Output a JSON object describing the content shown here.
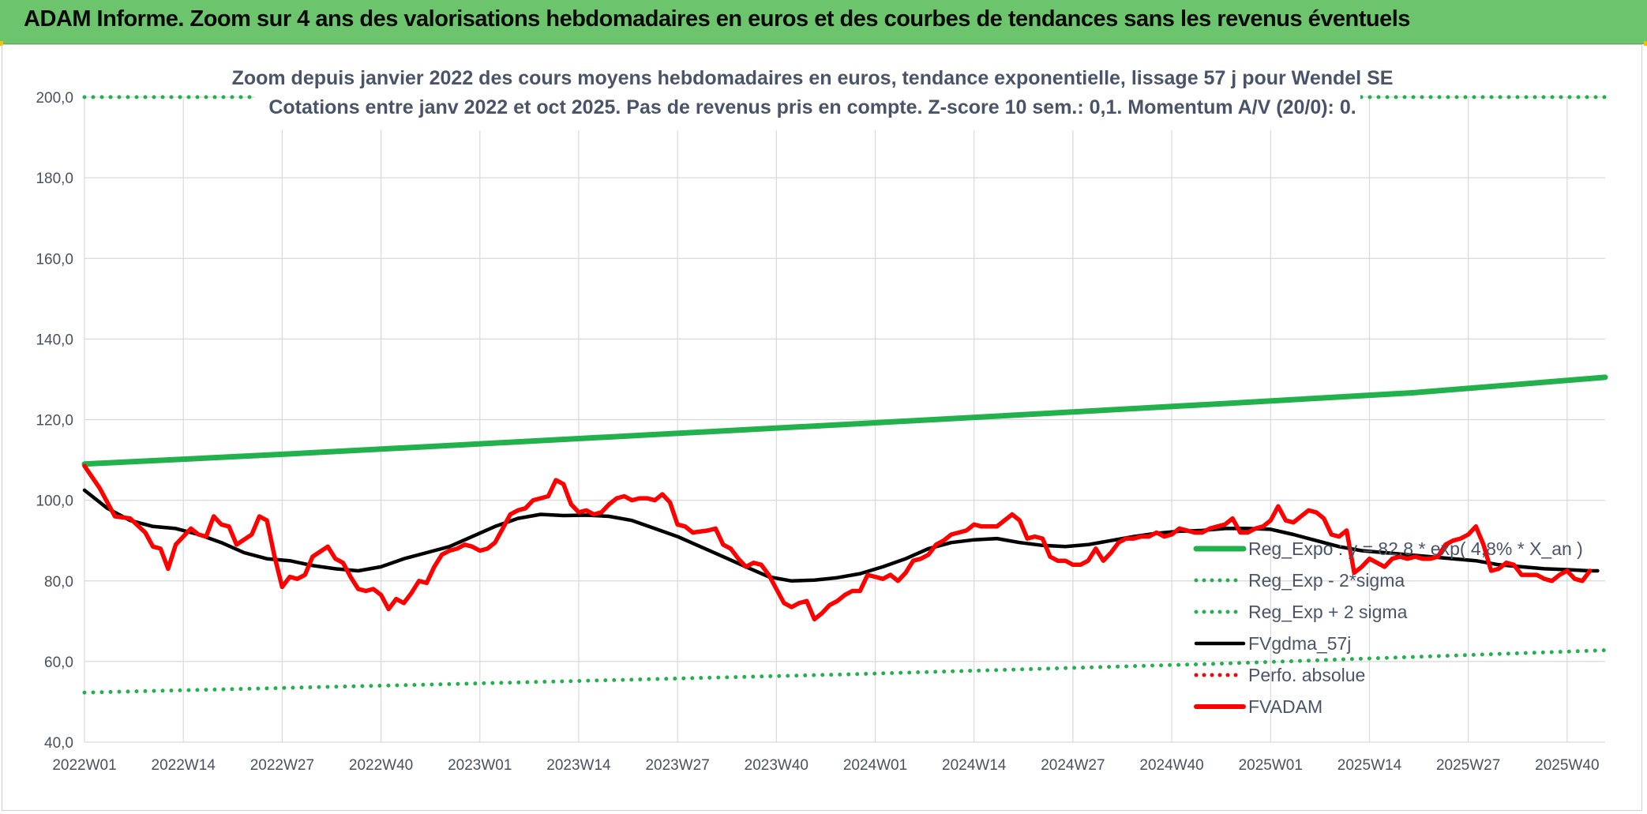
{
  "banner": {
    "title": "ADAM Informe. Zoom sur 4 ans des valorisations hebdomadaires en euros et des courbes de tendances sans les revenus éventuels"
  },
  "chart_data": {
    "type": "line",
    "title": "Zoom depuis janvier 2022 des cours moyens hebdomadaires en euros, tendance exponentielle, lissage 57 j pour Wendel SE",
    "subtitle": "Cotations entre janv 2022 et oct 2025. Pas de revenus pris en compte. Z-score 10 sem.: 0,1. Momentum A/V (20/0): 0.",
    "xlabel": "",
    "ylabel": "",
    "ylim": [
      40,
      200
    ],
    "y_ticks": [
      "40,0",
      "60,0",
      "80,0",
      "100,0",
      "120,0",
      "140,0",
      "160,0",
      "180,0",
      "200,0"
    ],
    "x_ticks": [
      "2022W01",
      "2022W14",
      "2022W27",
      "2022W40",
      "2023W01",
      "2023W14",
      "2023W27",
      "2023W40",
      "2024W01",
      "2024W14",
      "2024W27",
      "2024W40",
      "2025W01",
      "2025W14",
      "2025W27",
      "2025W40"
    ],
    "grid": true,
    "legend_position": "right",
    "series": [
      {
        "name": "Reg_Expo : y = 82,8 * exp( 4,8% * X_an )",
        "color": "#22b14c",
        "style": "solid",
        "points": [
          [
            0,
            109.0
          ],
          [
            25,
            111.3
          ],
          [
            50,
            113.8
          ],
          [
            75,
            116.3
          ],
          [
            100,
            118.8
          ],
          [
            125,
            121.4
          ],
          [
            150,
            124.0
          ],
          [
            175,
            126.7
          ],
          [
            200,
            130.5
          ]
        ]
      },
      {
        "name": "Reg_Exp - 2*sigma",
        "color": "#22b14c",
        "style": "dotted",
        "points": [
          [
            0,
            52.3
          ],
          [
            50,
            54.5
          ],
          [
            100,
            56.8
          ],
          [
            150,
            59.5
          ],
          [
            200,
            62.8
          ]
        ]
      },
      {
        "name": "Reg_Exp + 2 sigma",
        "color": "#22b14c",
        "style": "dotted",
        "points": [
          [
            0,
            200.0
          ],
          [
            200,
            200.0
          ]
        ]
      },
      {
        "name": "FVgdma_57j",
        "color": "#000000",
        "style": "solid",
        "points": [
          [
            0,
            102.5
          ],
          [
            3,
            98.0
          ],
          [
            6,
            95.0
          ],
          [
            9,
            93.5
          ],
          [
            12,
            93.0
          ],
          [
            15,
            91.5
          ],
          [
            18,
            89.5
          ],
          [
            21,
            87.0
          ],
          [
            24,
            85.5
          ],
          [
            27,
            85.0
          ],
          [
            30,
            83.8
          ],
          [
            33,
            83.0
          ],
          [
            36,
            82.5
          ],
          [
            39,
            83.5
          ],
          [
            42,
            85.5
          ],
          [
            45,
            87.0
          ],
          [
            48,
            88.5
          ],
          [
            51,
            91.0
          ],
          [
            54,
            93.5
          ],
          [
            57,
            95.5
          ],
          [
            60,
            96.5
          ],
          [
            63,
            96.2
          ],
          [
            66,
            96.3
          ],
          [
            69,
            96.0
          ],
          [
            72,
            95.0
          ],
          [
            75,
            93.0
          ],
          [
            78,
            91.0
          ],
          [
            81,
            88.5
          ],
          [
            84,
            86.0
          ],
          [
            87,
            83.5
          ],
          [
            90,
            81.0
          ],
          [
            93,
            80.0
          ],
          [
            96,
            80.2
          ],
          [
            99,
            80.8
          ],
          [
            102,
            81.8
          ],
          [
            105,
            83.5
          ],
          [
            108,
            85.5
          ],
          [
            111,
            88.0
          ],
          [
            114,
            89.5
          ],
          [
            117,
            90.2
          ],
          [
            120,
            90.5
          ],
          [
            123,
            89.5
          ],
          [
            126,
            88.8
          ],
          [
            129,
            88.5
          ],
          [
            132,
            89.0
          ],
          [
            135,
            90.0
          ],
          [
            138,
            91.0
          ],
          [
            141,
            91.8
          ],
          [
            144,
            92.3
          ],
          [
            147,
            92.5
          ],
          [
            150,
            93.0
          ],
          [
            153,
            93.0
          ],
          [
            156,
            92.8
          ],
          [
            159,
            91.5
          ],
          [
            162,
            90.0
          ],
          [
            165,
            88.5
          ],
          [
            168,
            87.5
          ],
          [
            171,
            87.0
          ],
          [
            174,
            86.5
          ],
          [
            177,
            86.0
          ],
          [
            180,
            85.5
          ],
          [
            183,
            85.0
          ],
          [
            186,
            84.0
          ],
          [
            189,
            83.5
          ],
          [
            192,
            83.0
          ],
          [
            195,
            82.8
          ],
          [
            198,
            82.5
          ],
          [
            199,
            82.5
          ]
        ]
      },
      {
        "name": "Perfo. absolue",
        "color": "#ff0000",
        "style": "dotted",
        "points": []
      },
      {
        "name": "FVADAM",
        "color": "#ff0000",
        "style": "solid",
        "points": [
          [
            0,
            108.5
          ],
          [
            2,
            103.0
          ],
          [
            4,
            96.0
          ],
          [
            6,
            95.5
          ],
          [
            8,
            92.0
          ],
          [
            9,
            88.5
          ],
          [
            10,
            88.0
          ],
          [
            11,
            83.0
          ],
          [
            12,
            89.0
          ],
          [
            14,
            93.0
          ],
          [
            15,
            91.5
          ],
          [
            16,
            91.0
          ],
          [
            17,
            96.0
          ],
          [
            18,
            94.0
          ],
          [
            19,
            93.5
          ],
          [
            20,
            89.0
          ],
          [
            22,
            91.5
          ],
          [
            23,
            96.0
          ],
          [
            24,
            95.0
          ],
          [
            25,
            86.0
          ],
          [
            26,
            78.5
          ],
          [
            27,
            81.0
          ],
          [
            28,
            80.5
          ],
          [
            29,
            81.5
          ],
          [
            30,
            86.0
          ],
          [
            32,
            88.5
          ],
          [
            33,
            85.5
          ],
          [
            34,
            84.5
          ],
          [
            35,
            81.0
          ],
          [
            36,
            78.0
          ],
          [
            37,
            77.5
          ],
          [
            38,
            78.0
          ],
          [
            39,
            76.5
          ],
          [
            40,
            73.0
          ],
          [
            41,
            75.5
          ],
          [
            42,
            74.5
          ],
          [
            43,
            77.0
          ],
          [
            44,
            80.0
          ],
          [
            45,
            79.5
          ],
          [
            46,
            83.5
          ],
          [
            47,
            86.5
          ],
          [
            48,
            87.5
          ],
          [
            49,
            88.0
          ],
          [
            50,
            89.0
          ],
          [
            51,
            88.5
          ],
          [
            52,
            87.5
          ],
          [
            53,
            88.0
          ],
          [
            54,
            89.5
          ],
          [
            55,
            93.0
          ],
          [
            56,
            96.5
          ],
          [
            57,
            97.5
          ],
          [
            58,
            98.0
          ],
          [
            59,
            100.0
          ],
          [
            60,
            100.5
          ],
          [
            61,
            101.0
          ],
          [
            62,
            105.0
          ],
          [
            63,
            104.0
          ],
          [
            64,
            99.0
          ],
          [
            65,
            97.0
          ],
          [
            66,
            97.5
          ],
          [
            67,
            96.5
          ],
          [
            68,
            97.0
          ],
          [
            69,
            99.0
          ],
          [
            70,
            100.5
          ],
          [
            71,
            101.0
          ],
          [
            72,
            100.0
          ],
          [
            73,
            100.5
          ],
          [
            74,
            100.5
          ],
          [
            75,
            100.0
          ],
          [
            76,
            101.5
          ],
          [
            77,
            99.5
          ],
          [
            78,
            94.0
          ],
          [
            79,
            93.5
          ],
          [
            80,
            92.0
          ],
          [
            82,
            92.5
          ],
          [
            83,
            93.0
          ],
          [
            84,
            89.0
          ],
          [
            85,
            88.0
          ],
          [
            86,
            85.5
          ],
          [
            87,
            83.5
          ],
          [
            88,
            84.5
          ],
          [
            89,
            84.0
          ],
          [
            90,
            81.5
          ],
          [
            91,
            78.0
          ],
          [
            92,
            74.5
          ],
          [
            93,
            73.5
          ],
          [
            94,
            74.5
          ],
          [
            95,
            75.0
          ],
          [
            96,
            70.5
          ],
          [
            97,
            72.0
          ],
          [
            98,
            74.0
          ],
          [
            99,
            75.0
          ],
          [
            100,
            76.5
          ],
          [
            101,
            77.5
          ],
          [
            102,
            77.5
          ],
          [
            103,
            81.5
          ],
          [
            104,
            81.0
          ],
          [
            105,
            80.5
          ],
          [
            106,
            81.5
          ],
          [
            107,
            80.0
          ],
          [
            108,
            82.0
          ],
          [
            109,
            85.0
          ],
          [
            110,
            85.5
          ],
          [
            111,
            86.5
          ],
          [
            112,
            89.0
          ],
          [
            113,
            90.0
          ],
          [
            114,
            91.5
          ],
          [
            115,
            92.0
          ],
          [
            116,
            92.5
          ],
          [
            117,
            94.0
          ],
          [
            118,
            93.5
          ],
          [
            119,
            93.5
          ],
          [
            120,
            93.5
          ],
          [
            121,
            95.0
          ],
          [
            122,
            96.5
          ],
          [
            123,
            95.0
          ],
          [
            124,
            90.5
          ],
          [
            125,
            91.0
          ],
          [
            126,
            90.5
          ],
          [
            127,
            86.0
          ],
          [
            128,
            85.0
          ],
          [
            129,
            85.0
          ],
          [
            130,
            84.0
          ],
          [
            131,
            84.0
          ],
          [
            132,
            85.0
          ],
          [
            133,
            88.0
          ],
          [
            134,
            85.0
          ],
          [
            135,
            87.0
          ],
          [
            136,
            89.5
          ],
          [
            137,
            90.5
          ],
          [
            138,
            90.5
          ],
          [
            139,
            91.0
          ],
          [
            140,
            91.0
          ],
          [
            141,
            92.0
          ],
          [
            142,
            91.0
          ],
          [
            143,
            91.5
          ],
          [
            144,
            93.0
          ],
          [
            145,
            92.5
          ],
          [
            146,
            92.0
          ],
          [
            147,
            92.0
          ],
          [
            148,
            93.0
          ],
          [
            149,
            93.5
          ],
          [
            150,
            94.0
          ],
          [
            151,
            95.5
          ],
          [
            152,
            92.0
          ],
          [
            153,
            92.0
          ],
          [
            154,
            93.0
          ],
          [
            155,
            93.5
          ],
          [
            156,
            95.0
          ],
          [
            157,
            98.5
          ],
          [
            158,
            95.0
          ],
          [
            159,
            94.5
          ],
          [
            160,
            96.0
          ],
          [
            161,
            97.5
          ],
          [
            162,
            97.0
          ],
          [
            163,
            95.5
          ],
          [
            164,
            91.5
          ],
          [
            165,
            91.0
          ],
          [
            166,
            92.5
          ],
          [
            167,
            82.0
          ],
          [
            168,
            83.5
          ],
          [
            169,
            85.5
          ],
          [
            170,
            84.5
          ],
          [
            171,
            83.5
          ],
          [
            172,
            85.5
          ],
          [
            173,
            86.0
          ],
          [
            174,
            85.5
          ],
          [
            175,
            86.0
          ],
          [
            176,
            85.5
          ],
          [
            177,
            85.5
          ],
          [
            178,
            86.0
          ],
          [
            179,
            89.0
          ],
          [
            180,
            90.0
          ],
          [
            181,
            90.5
          ],
          [
            182,
            91.5
          ],
          [
            183,
            93.5
          ],
          [
            184,
            89.0
          ],
          [
            185,
            82.5
          ],
          [
            186,
            83.0
          ],
          [
            187,
            84.5
          ],
          [
            188,
            84.0
          ],
          [
            189,
            81.5
          ],
          [
            190,
            81.5
          ],
          [
            191,
            81.5
          ],
          [
            192,
            80.5
          ],
          [
            193,
            80.0
          ],
          [
            194,
            81.5
          ],
          [
            195,
            82.5
          ],
          [
            196,
            80.5
          ],
          [
            197,
            80.0
          ],
          [
            198,
            82.5
          ]
        ]
      }
    ]
  }
}
